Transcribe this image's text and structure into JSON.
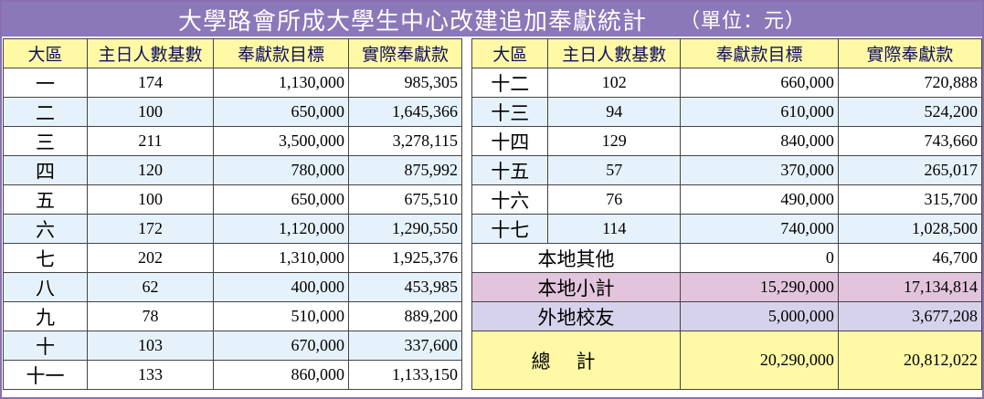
{
  "title": "大學路會所成大學生中心改建追加奉獻統計",
  "unit": "（單位：元）",
  "headers": [
    "大區",
    "主日人數基數",
    "奉獻款目標",
    "實際奉獻款"
  ],
  "left_rows": [
    {
      "district": "一",
      "count": "174",
      "target": "1,130,000",
      "actual": "985,305"
    },
    {
      "district": "二",
      "count": "100",
      "target": "650,000",
      "actual": "1,645,366"
    },
    {
      "district": "三",
      "count": "211",
      "target": "3,500,000",
      "actual": "3,278,115"
    },
    {
      "district": "四",
      "count": "120",
      "target": "780,000",
      "actual": "875,992"
    },
    {
      "district": "五",
      "count": "100",
      "target": "650,000",
      "actual": "675,510"
    },
    {
      "district": "六",
      "count": "172",
      "target": "1,120,000",
      "actual": "1,290,550"
    },
    {
      "district": "七",
      "count": "202",
      "target": "1,310,000",
      "actual": "1,925,376"
    },
    {
      "district": "八",
      "count": "62",
      "target": "400,000",
      "actual": "453,985"
    },
    {
      "district": "九",
      "count": "78",
      "target": "510,000",
      "actual": "889,200"
    },
    {
      "district": "十",
      "count": "103",
      "target": "670,000",
      "actual": "337,600"
    },
    {
      "district": "十一",
      "count": "133",
      "target": "860,000",
      "actual": "1,133,150"
    }
  ],
  "right_rows": [
    {
      "district": "十二",
      "count": "102",
      "target": "660,000",
      "actual": "720,888"
    },
    {
      "district": "十三",
      "count": "94",
      "target": "610,000",
      "actual": "524,200"
    },
    {
      "district": "十四",
      "count": "129",
      "target": "840,000",
      "actual": "743,660"
    },
    {
      "district": "十五",
      "count": "57",
      "target": "370,000",
      "actual": "265,017"
    },
    {
      "district": "十六",
      "count": "76",
      "target": "490,000",
      "actual": "315,700"
    },
    {
      "district": "十七",
      "count": "114",
      "target": "740,000",
      "actual": "1,028,500"
    }
  ],
  "summary": {
    "local_other": {
      "label": "本地其他",
      "target": "0",
      "actual": "46,700"
    },
    "local_subtotal": {
      "label": "本地小計",
      "target": "15,290,000",
      "actual": "17,134,814"
    },
    "alumni": {
      "label": "外地校友",
      "target": "5,000,000",
      "actual": "3,677,208"
    },
    "total": {
      "label": "總計",
      "target": "20,290,000",
      "actual": "20,812,022"
    }
  },
  "colors": {
    "title_bg": "#8b78b9",
    "header_bg": "#fff9a6",
    "alt_row_bg": "#e6f2fb",
    "subtotal_bg": "#e2c4dc",
    "alumni_bg": "#d7d2ec",
    "total_bg": "#fff9a6"
  }
}
